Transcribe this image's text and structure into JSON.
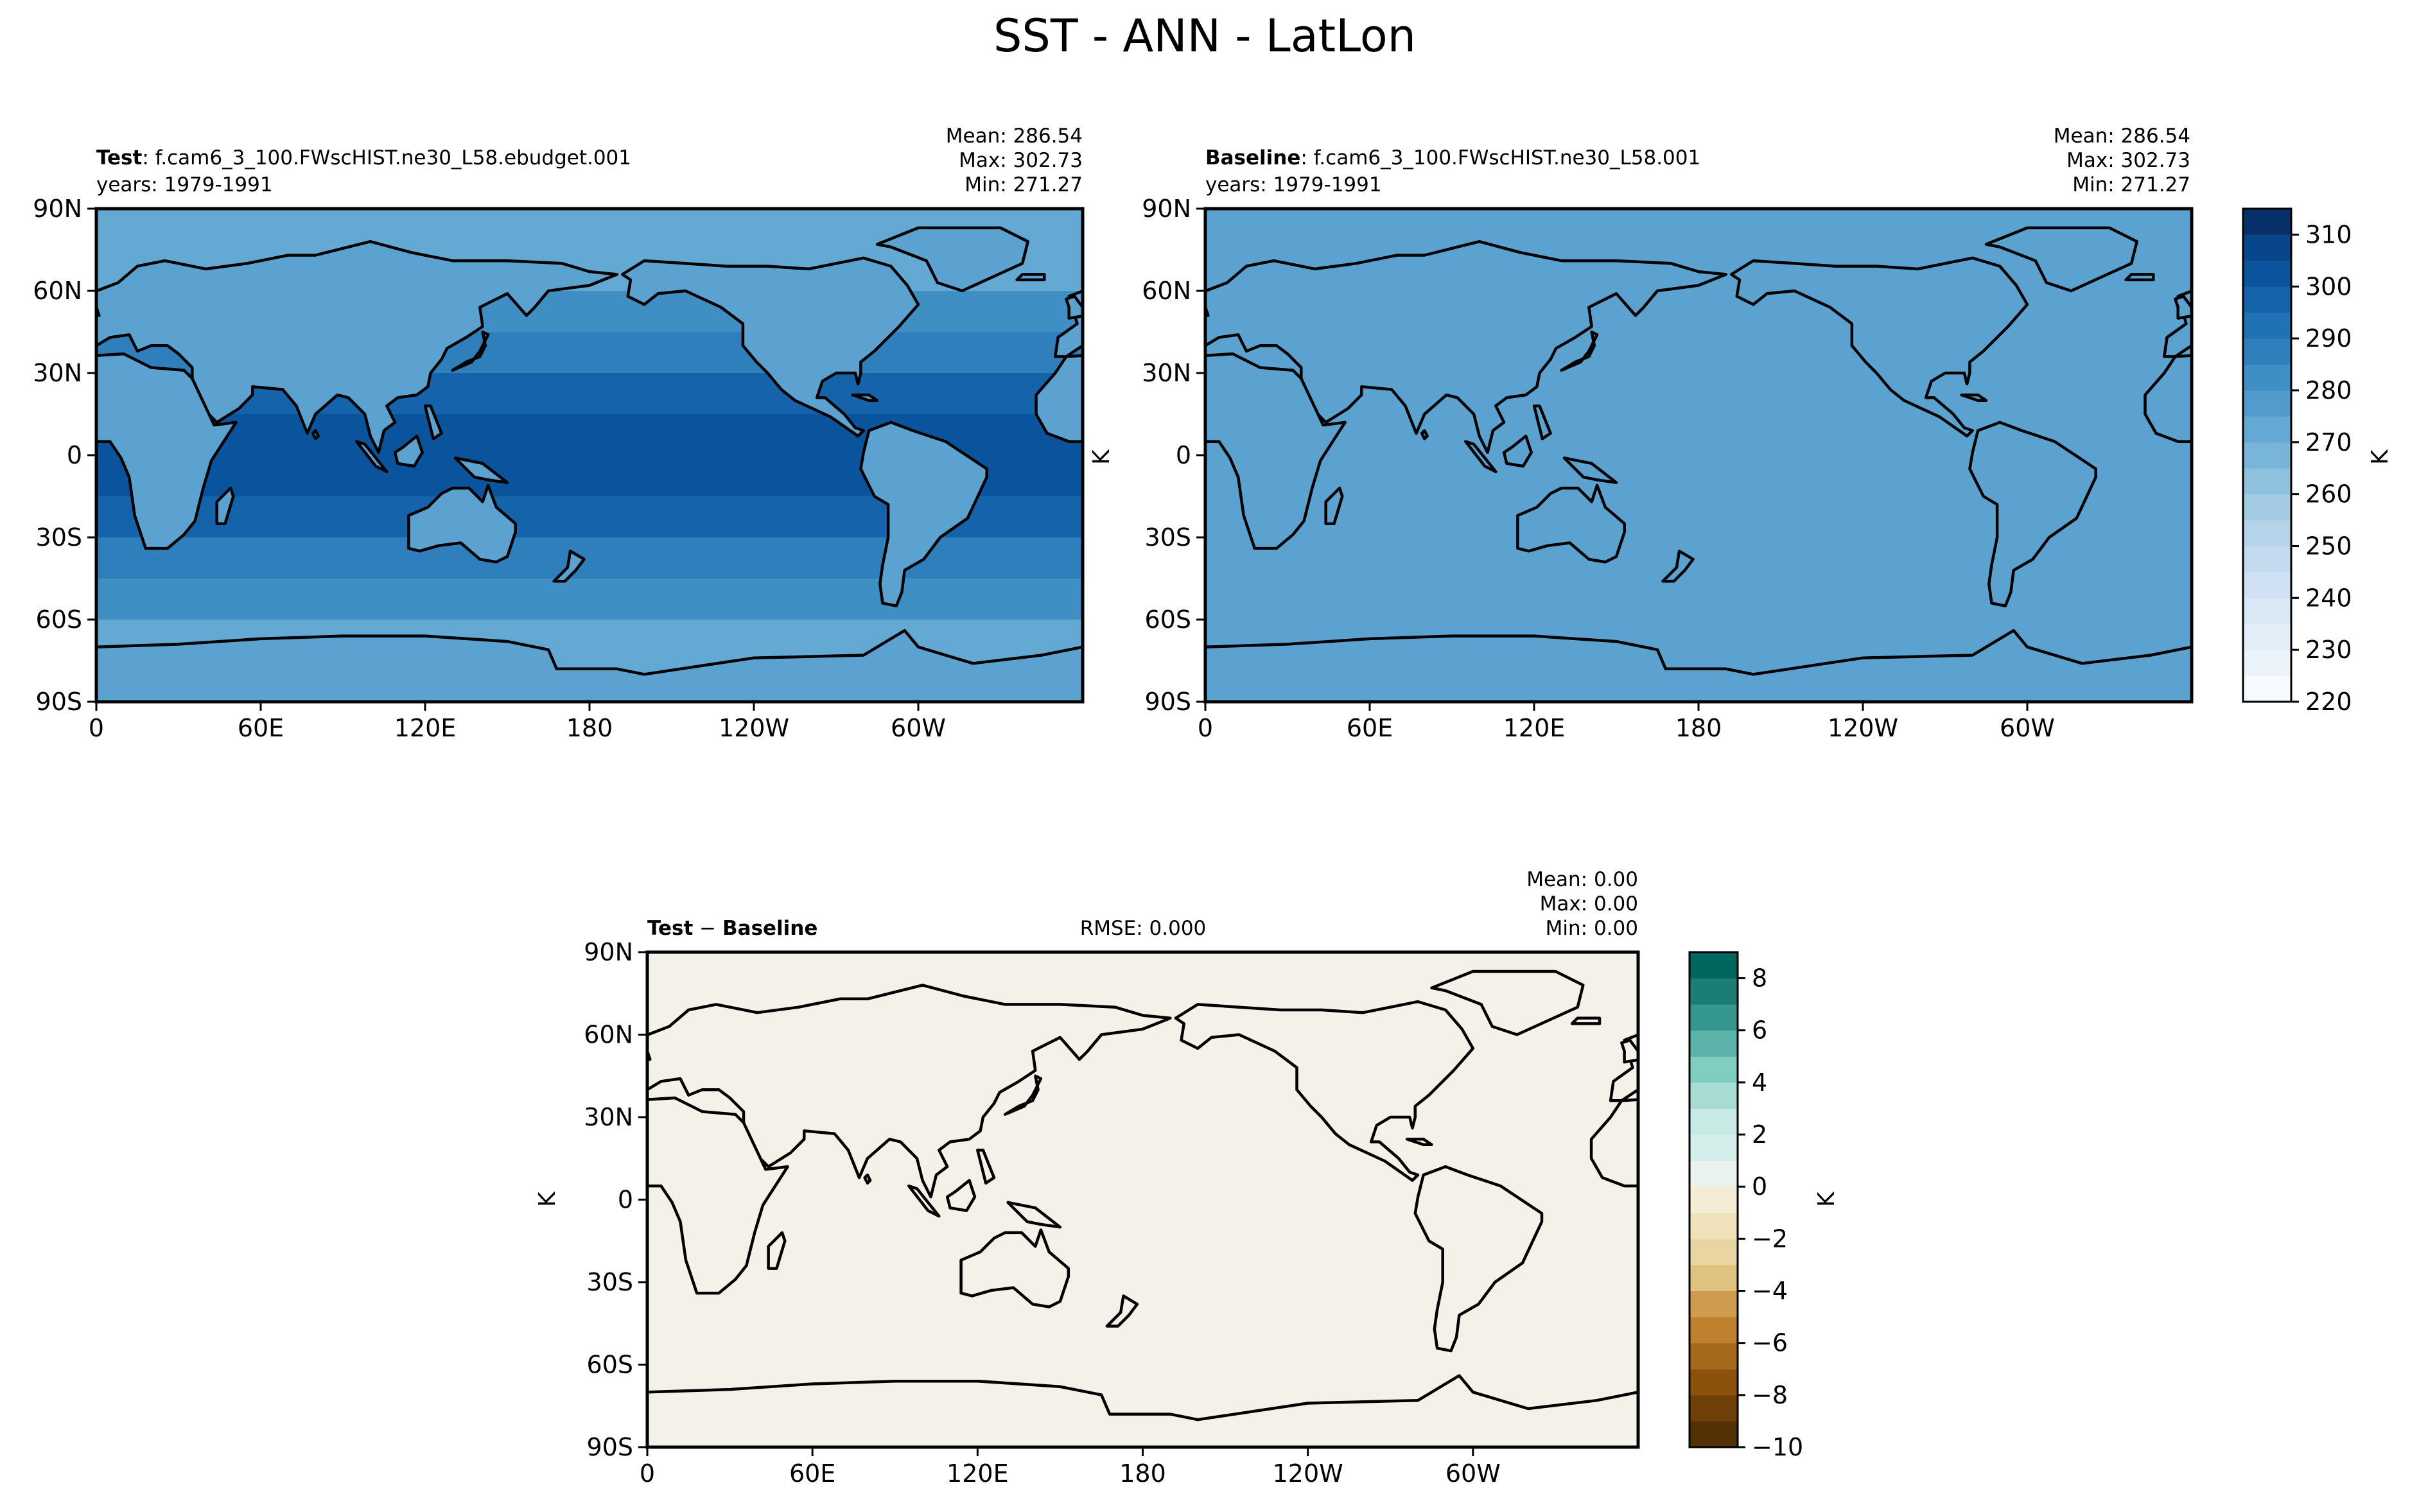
{
  "figure": {
    "title": "SST - ANN - LatLon"
  },
  "panels": [
    {
      "id": "test",
      "label_bold": "Test",
      "label_rest": ": f.cam6_3_100.FWscHIST.ne30_L58.ebudget.001",
      "years": "years: 1979-1991",
      "stats": [
        "Mean: 286.54",
        "Max: 302.73",
        "Min: 271.27"
      ],
      "land_color": "#5ca2d0"
    },
    {
      "id": "baseline",
      "label_bold": "Baseline",
      "label_rest": ": f.cam6_3_100.FWscHIST.ne30_L58.001",
      "years": "years: 1979-1991",
      "stats": [
        "Mean: 286.54",
        "Max: 302.73",
        "Min: 271.27"
      ],
      "land_color": "#5ca2d0",
      "units": "K"
    },
    {
      "id": "diff",
      "label_bold": "Test",
      "label_minus": " − ",
      "label_bold2": "Baseline",
      "rmse": "RMSE: 0.000",
      "stats": [
        "Mean:  0.00",
        "Max:  0.00",
        "Min:  0.00"
      ],
      "land_color": "#f4f2e8",
      "units": "K"
    }
  ],
  "axes": {
    "lon_ticks": [
      "0",
      "60E",
      "120E",
      "180",
      "120W",
      "60W"
    ],
    "lat_ticks": [
      "90N",
      "60N",
      "30N",
      "0",
      "30S",
      "60S",
      "90S"
    ]
  },
  "chart_data": [
    {
      "type": "heatmap",
      "title": "Test: f.cam6_3_100.FWscHIST.ne30_L58.ebudget.001",
      "variable": "SST",
      "units": "K",
      "xlim": [
        0,
        360
      ],
      "ylim": [
        -90,
        90
      ],
      "lon_labels": [
        "0",
        "60E",
        "120E",
        "180",
        "120W",
        "60W"
      ],
      "lat_labels": [
        "90N",
        "60N",
        "30N",
        "0",
        "30S",
        "60S",
        "90S"
      ],
      "mean": 286.54,
      "max": 302.73,
      "min": 271.27,
      "zonal_bands": [
        {
          "lat": [
            60,
            90
          ],
          "value": 273
        },
        {
          "lat": [
            45,
            60
          ],
          "value": 280
        },
        {
          "lat": [
            30,
            45
          ],
          "value": 288
        },
        {
          "lat": [
            15,
            30
          ],
          "value": 295
        },
        {
          "lat": [
            -15,
            15
          ],
          "value": 300
        },
        {
          "lat": [
            -30,
            -15
          ],
          "value": 295
        },
        {
          "lat": [
            -45,
            -30
          ],
          "value": 288
        },
        {
          "lat": [
            -60,
            -45
          ],
          "value": 280
        },
        {
          "lat": [
            -90,
            -60
          ],
          "value": 272
        }
      ]
    },
    {
      "type": "heatmap",
      "title": "Baseline: f.cam6_3_100.FWscHIST.ne30_L58.001",
      "variable": "SST",
      "units": "K",
      "xlim": [
        0,
        360
      ],
      "ylim": [
        -90,
        90
      ],
      "lon_labels": [
        "0",
        "60E",
        "120E",
        "180",
        "120W",
        "60W"
      ],
      "lat_labels": [
        "90N",
        "60N",
        "30N",
        "0",
        "30S",
        "60S",
        "90S"
      ],
      "mean": 286.54,
      "max": 302.73,
      "min": 271.27,
      "colorbar": {
        "label": "K",
        "range": [
          220,
          315
        ],
        "tick_labels": [
          "220",
          "230",
          "240",
          "250",
          "260",
          "270",
          "280",
          "290",
          "300",
          "310"
        ],
        "levels": [
          220,
          225,
          230,
          235,
          240,
          245,
          250,
          255,
          260,
          265,
          270,
          275,
          280,
          285,
          290,
          295,
          300,
          305,
          310,
          315
        ],
        "colors": [
          "#f7fbff",
          "#ecf4fb",
          "#e3eef8",
          "#d9e8f5",
          "#cfe1f2",
          "#c4daee",
          "#b5d4e9",
          "#a3cce4",
          "#8fc1de",
          "#79b5d9",
          "#64a9d3",
          "#519ccc",
          "#3f8fc5",
          "#2f7fbc",
          "#2171b5",
          "#1563aa",
          "#0a549e",
          "#08468b",
          "#08306b"
        ]
      }
    },
    {
      "type": "heatmap",
      "title": "Test − Baseline",
      "units": "K",
      "xlim": [
        0,
        360
      ],
      "ylim": [
        -90,
        90
      ],
      "lon_labels": [
        "0",
        "60E",
        "120E",
        "180",
        "120W",
        "60W"
      ],
      "lat_labels": [
        "90N",
        "60N",
        "30N",
        "0",
        "30S",
        "60S",
        "90S"
      ],
      "mean": 0.0,
      "max": 0.0,
      "min": 0.0,
      "rmse": 0.0,
      "colorbar": {
        "label": "K",
        "range": [
          -10,
          9
        ],
        "tick_labels": [
          "−10",
          "−8",
          "−6",
          "−4",
          "−2",
          "0",
          "2",
          "4",
          "6",
          "8"
        ],
        "levels": [
          -10,
          -9,
          -8,
          -7,
          -6,
          -5,
          -4,
          -3,
          -2,
          -1,
          0,
          1,
          2,
          3,
          4,
          5,
          6,
          7,
          8,
          9
        ],
        "colors": [
          "#543005",
          "#704009",
          "#8c510a",
          "#a6681a",
          "#bf812d",
          "#cf9b4f",
          "#dfc27d",
          "#e9d5a1",
          "#f0e2bb",
          "#f5ecd6",
          "#eaf2f0",
          "#d3eeea",
          "#c7eae5",
          "#a8ddd4",
          "#80cdc1",
          "#5ab2a8",
          "#35978f",
          "#1b7d74",
          "#01665e"
        ]
      }
    }
  ]
}
